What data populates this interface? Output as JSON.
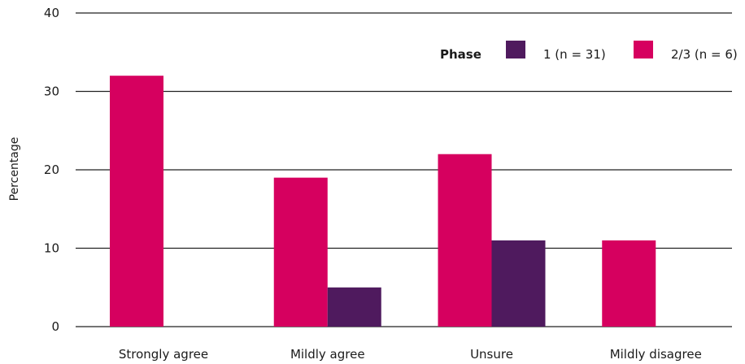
{
  "chart_data": {
    "type": "bar",
    "title": "",
    "xlabel": "",
    "ylabel": "Percentage",
    "ylim": [
      0,
      40
    ],
    "yticks": [
      0,
      10,
      20,
      30,
      40
    ],
    "grid": true,
    "categories": [
      "Strongly agree",
      "Mildly agree",
      "Unsure",
      "Mildly disagree"
    ],
    "legend": {
      "title": "Phase",
      "placement": "top-right"
    },
    "series": [
      {
        "name": "2/3 (n = 6)",
        "color": "#d6005f",
        "values": [
          32,
          19,
          22,
          11
        ]
      },
      {
        "name": "1 (n = 31)",
        "color": "#4f1a5e",
        "values": [
          0,
          5,
          11,
          0
        ]
      }
    ],
    "legend_order": [
      1,
      0
    ]
  }
}
